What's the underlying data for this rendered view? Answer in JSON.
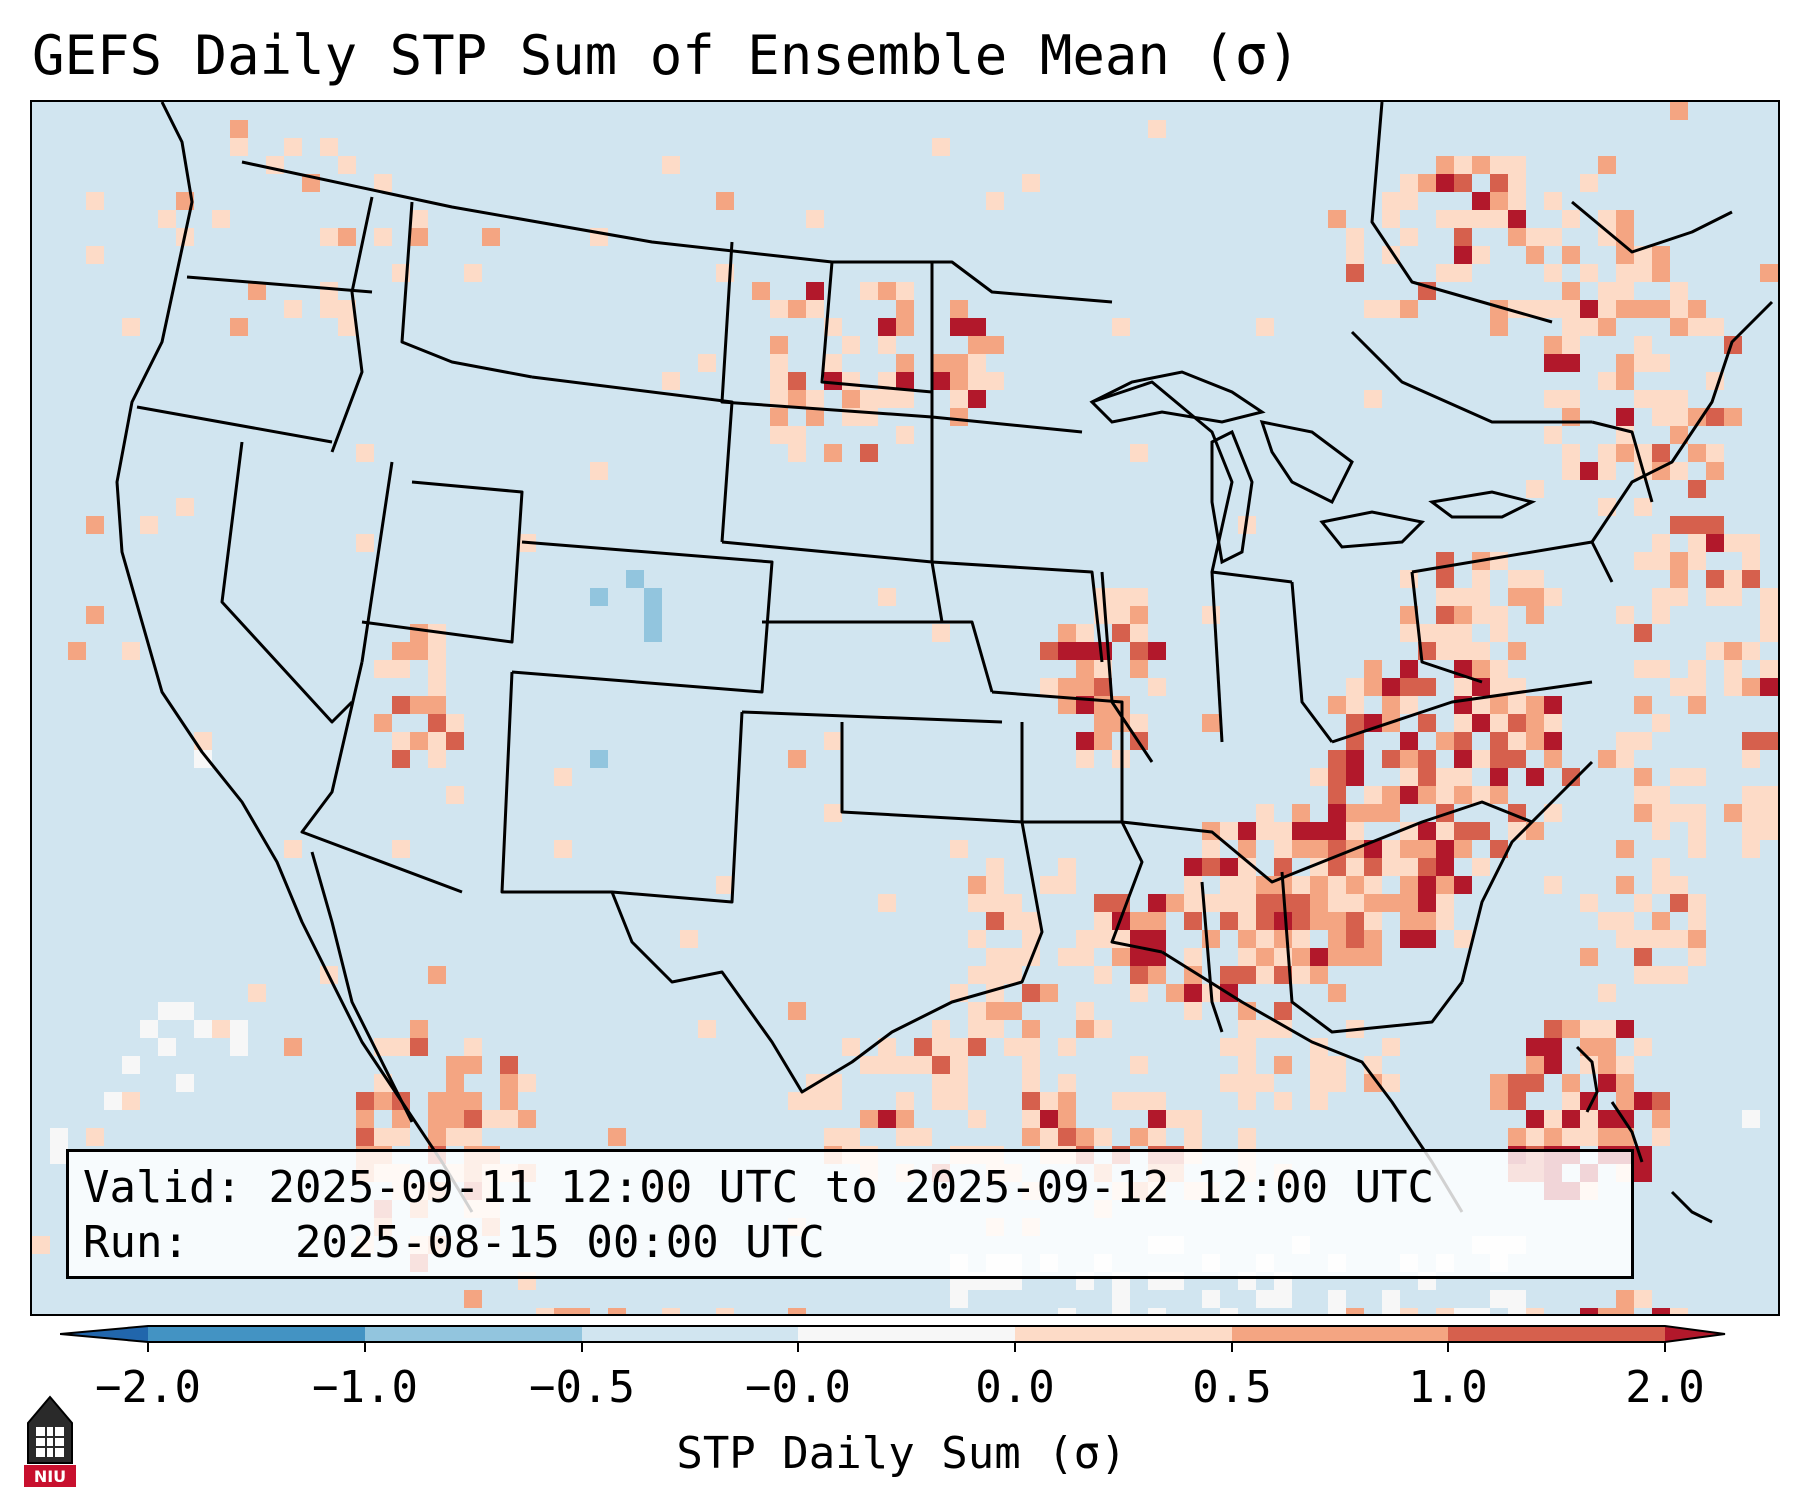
{
  "title": "GEFS Daily STP Sum of Ensemble Mean (σ)",
  "info": {
    "valid_label": "Valid:",
    "valid_value": "2025-09-11 12:00 UTC to 2025-09-12 12:00 UTC",
    "run_label": "Run:",
    "run_value": "2025-08-15 00:00 UTC"
  },
  "colorbar": {
    "label": "STP Daily Sum (σ)",
    "ticks": [
      "−2.0",
      "−1.0",
      "−0.5",
      "−0.0",
      "0.0",
      "0.5",
      "1.0",
      "2.0"
    ],
    "bins": [
      {
        "range": "< -2.0",
        "color": "#2166ac"
      },
      {
        "range": "-2.0 to -1.0",
        "color": "#4393c3"
      },
      {
        "range": "-1.0 to -0.5",
        "color": "#92c5de"
      },
      {
        "range": "-0.5 to -0.0",
        "color": "#d1e5f0"
      },
      {
        "range": "-0.0 to 0.0",
        "color": "#f7f7f7"
      },
      {
        "range": "0.0 to 0.5",
        "color": "#fddbc7"
      },
      {
        "range": "0.5 to 1.0",
        "color": "#f4a582"
      },
      {
        "range": "1.0 to 2.0",
        "color": "#d6604d"
      },
      {
        "range": "> 2.0",
        "color": "#b2182b"
      }
    ]
  },
  "logo_text": "NIU",
  "map": {
    "projection": "Lambert conformal CONUS",
    "background_value_color": "#d1e5f0",
    "highlight_regions": [
      {
        "name": "Ohio Valley / Appalachians",
        "level": "> 2.0"
      },
      {
        "name": "Tennessee Valley / Alabama / Georgia",
        "level": "> 2.0"
      },
      {
        "name": "Missouri / Illinois border",
        "level": "1.0 to 2.0"
      },
      {
        "name": "Bahamas",
        "level": "> 2.0"
      },
      {
        "name": "Northern Mexico",
        "level": "0.5 to 1.0"
      },
      {
        "name": "Colorado",
        "level": "-1.0 to -0.5"
      }
    ]
  }
}
